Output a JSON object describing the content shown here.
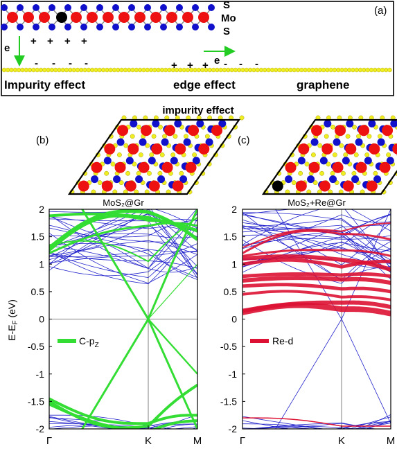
{
  "panel_a": {
    "label": "(a)",
    "layer_labels": {
      "top": "S",
      "middle": "Mo",
      "bottom": "S"
    },
    "electron_label": "e",
    "plus": "+",
    "minus": "-",
    "section_impurity": "Impurity effect",
    "section_edge": "edge effect",
    "section_graphene": "graphene"
  },
  "section_title": "impurity effect",
  "panel_b": {
    "label": "(b)",
    "structure_label": "MoS₂@Gr",
    "legend": "C-p",
    "legend_sub": "Z",
    "legend_color": "#33dd33"
  },
  "panel_c": {
    "label": "(c)",
    "structure_label": "MoS₂+Re@Gr",
    "legend": "Re-d",
    "legend_color": "#dd1133"
  },
  "axes": {
    "ylabel_main": "E-E",
    "ylabel_sub": "F",
    "ylabel_unit": " (eV)",
    "yticks": [
      "2",
      "1.5",
      "1",
      "0.5",
      "0",
      "-0.5",
      "-1",
      "-1.5",
      "-2"
    ],
    "xticks": [
      "Γ",
      "K",
      "M"
    ]
  },
  "colors": {
    "mo": "#ee1111",
    "s": "#1111cc",
    "c": "#eeee22",
    "band": "#2222cc",
    "green": "#33dd33",
    "red": "#dd1133",
    "arrow": "#22cc22"
  },
  "chart_data": [
    {
      "type": "line",
      "title": "MoS₂@Gr",
      "ylabel": "E-E_F (eV)",
      "ylim": [
        -2,
        2
      ],
      "x": [
        "Γ",
        "K",
        "M"
      ],
      "series": [
        {
          "name": "C-p_Z",
          "description": "graphene Dirac cone crossing at K",
          "points": [
            [
              0,
              2.0
            ],
            [
              1,
              0.0
            ],
            [
              1.5,
              -1.0
            ],
            [
              2,
              -2.0
            ]
          ]
        }
      ]
    },
    {
      "type": "line",
      "title": "MoS₂+Re@Gr",
      "ylabel": "E-E_F (eV)",
      "ylim": [
        -2,
        2
      ],
      "x": [
        "Γ",
        "K",
        "M"
      ],
      "series": [
        {
          "name": "Re-d",
          "description": "Re-d projected bands near 0.1-1.1 eV",
          "points": [
            [
              0,
              0.15
            ],
            [
              1,
              0.25
            ],
            [
              2,
              0.1
            ]
          ]
        }
      ]
    }
  ]
}
